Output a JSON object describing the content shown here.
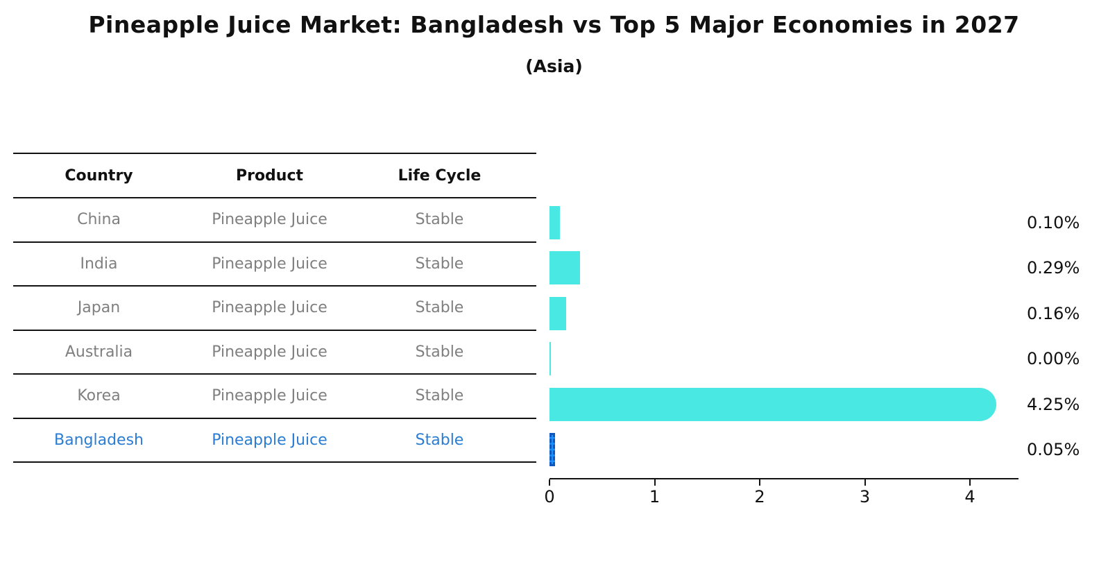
{
  "title": "Pineapple Juice Market: Bangladesh vs Top 5 Major Economies in 2027",
  "subtitle": "(Asia)",
  "table": {
    "headers": [
      "Country",
      "Product",
      "Life Cycle"
    ],
    "rows": [
      {
        "country": "China",
        "product": "Pineapple Juice",
        "life_cycle": "Stable",
        "highlighted": false
      },
      {
        "country": "India",
        "product": "Pineapple Juice",
        "life_cycle": "Stable",
        "highlighted": false
      },
      {
        "country": "Japan",
        "product": "Pineapple Juice",
        "life_cycle": "Stable",
        "highlighted": false
      },
      {
        "country": "Australia",
        "product": "Pineapple Juice",
        "life_cycle": "Stable",
        "highlighted": false
      },
      {
        "country": "Korea",
        "product": "Pineapple Juice",
        "life_cycle": "Stable",
        "highlighted": false
      },
      {
        "country": "Bangladesh",
        "product": "Pineapple Juice",
        "life_cycle": "Stable",
        "highlighted": true
      }
    ]
  },
  "chart_data": {
    "type": "bar",
    "orientation": "horizontal",
    "title": "Pineapple Juice Market: Bangladesh vs Top 5 Major Economies in 2027",
    "subtitle": "(Asia)",
    "categories": [
      "China",
      "India",
      "Japan",
      "Australia",
      "Korea",
      "Bangladesh"
    ],
    "values": [
      0.1,
      0.29,
      0.16,
      0.0,
      4.25,
      0.05
    ],
    "value_labels": [
      "0.10%",
      "0.29%",
      "0.16%",
      "0.00%",
      "4.25%",
      "0.05%"
    ],
    "unit": "%",
    "xticks": [
      0,
      1,
      2,
      3,
      4
    ],
    "xlim": [
      0,
      4.46
    ],
    "grid": false,
    "legend": false,
    "highlight_index": 5,
    "bar_color": "#49E8E3",
    "highlight_bar_color": "#1E90FF",
    "highlight_border_color": "#1058BC",
    "highlight_text_color": "#2A7DD2",
    "body_text_color": "#7f7f7f",
    "axis_color": "#111111"
  }
}
